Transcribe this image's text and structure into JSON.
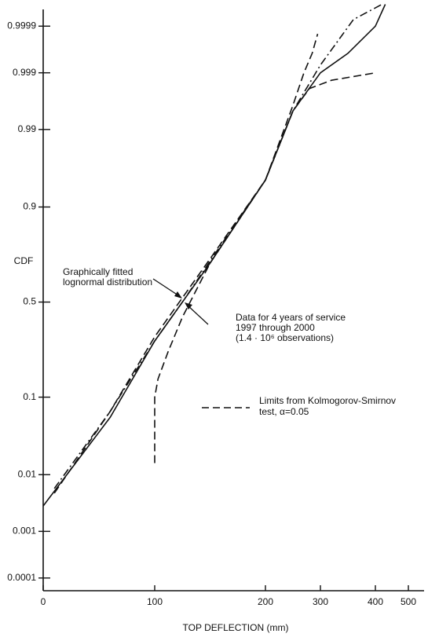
{
  "chart_data": {
    "type": "line",
    "yscale": "probit",
    "ylabel": "CDF",
    "xlabel": "TOP DEFLECTION (mm)",
    "xlim": [
      0,
      540
    ],
    "xticks": [
      0,
      100,
      200,
      300,
      400,
      500
    ],
    "ylim": [
      5e-05,
      0.99996
    ],
    "yticks": [
      0.0001,
      0.001,
      0.01,
      0.1,
      0.5,
      0.9,
      0.99,
      0.999,
      0.9999
    ],
    "grid": false,
    "series": [
      {
        "style": "dashdot",
        "color": "#111111",
        "x": [
          10,
          60,
          100,
          125,
          160,
          200,
          250,
          300,
          360,
          420
        ],
        "values": [
          0.006,
          0.07,
          0.3,
          0.5,
          0.78,
          0.95,
          0.995,
          0.9993,
          0.99993,
          0.99997
        ]
      },
      {
        "style": "solid",
        "color": "#111111",
        "x": [
          0,
          60,
          100,
          150,
          200,
          250,
          300,
          350,
          400,
          430
        ],
        "values": [
          0.003,
          0.06,
          0.3,
          0.7,
          0.95,
          0.995,
          0.999,
          0.9996,
          0.9999,
          0.99997
        ]
      },
      {
        "style": "dashed",
        "color": "#111111",
        "x": [
          10,
          60,
          100,
          150,
          200,
          250,
          270,
          285,
          295
        ],
        "values": [
          0.005,
          0.07,
          0.32,
          0.72,
          0.95,
          0.996,
          0.999,
          0.9996,
          0.99985
        ]
      },
      {
        "style": "dashed",
        "color": "#111111",
        "x": [
          100,
          100,
          103,
          112,
          125,
          150,
          200,
          250,
          280,
          320,
          400
        ],
        "values": [
          0.015,
          0.1,
          0.15,
          0.25,
          0.42,
          0.7,
          0.95,
          0.995,
          0.998,
          0.9986,
          0.999
        ]
      }
    ],
    "annotations": [
      {
        "lines": [
          "Graphically fitted",
          "lognormal distribution"
        ]
      },
      {
        "lines": [
          "Data for 4 years of service",
          "1997 through 2000",
          "(1.4 · 10⁶ observations)"
        ]
      }
    ],
    "legend": {
      "lines": [
        "Limits from Kolmogorov-Smirnov",
        "test, α=0.05"
      ]
    }
  }
}
